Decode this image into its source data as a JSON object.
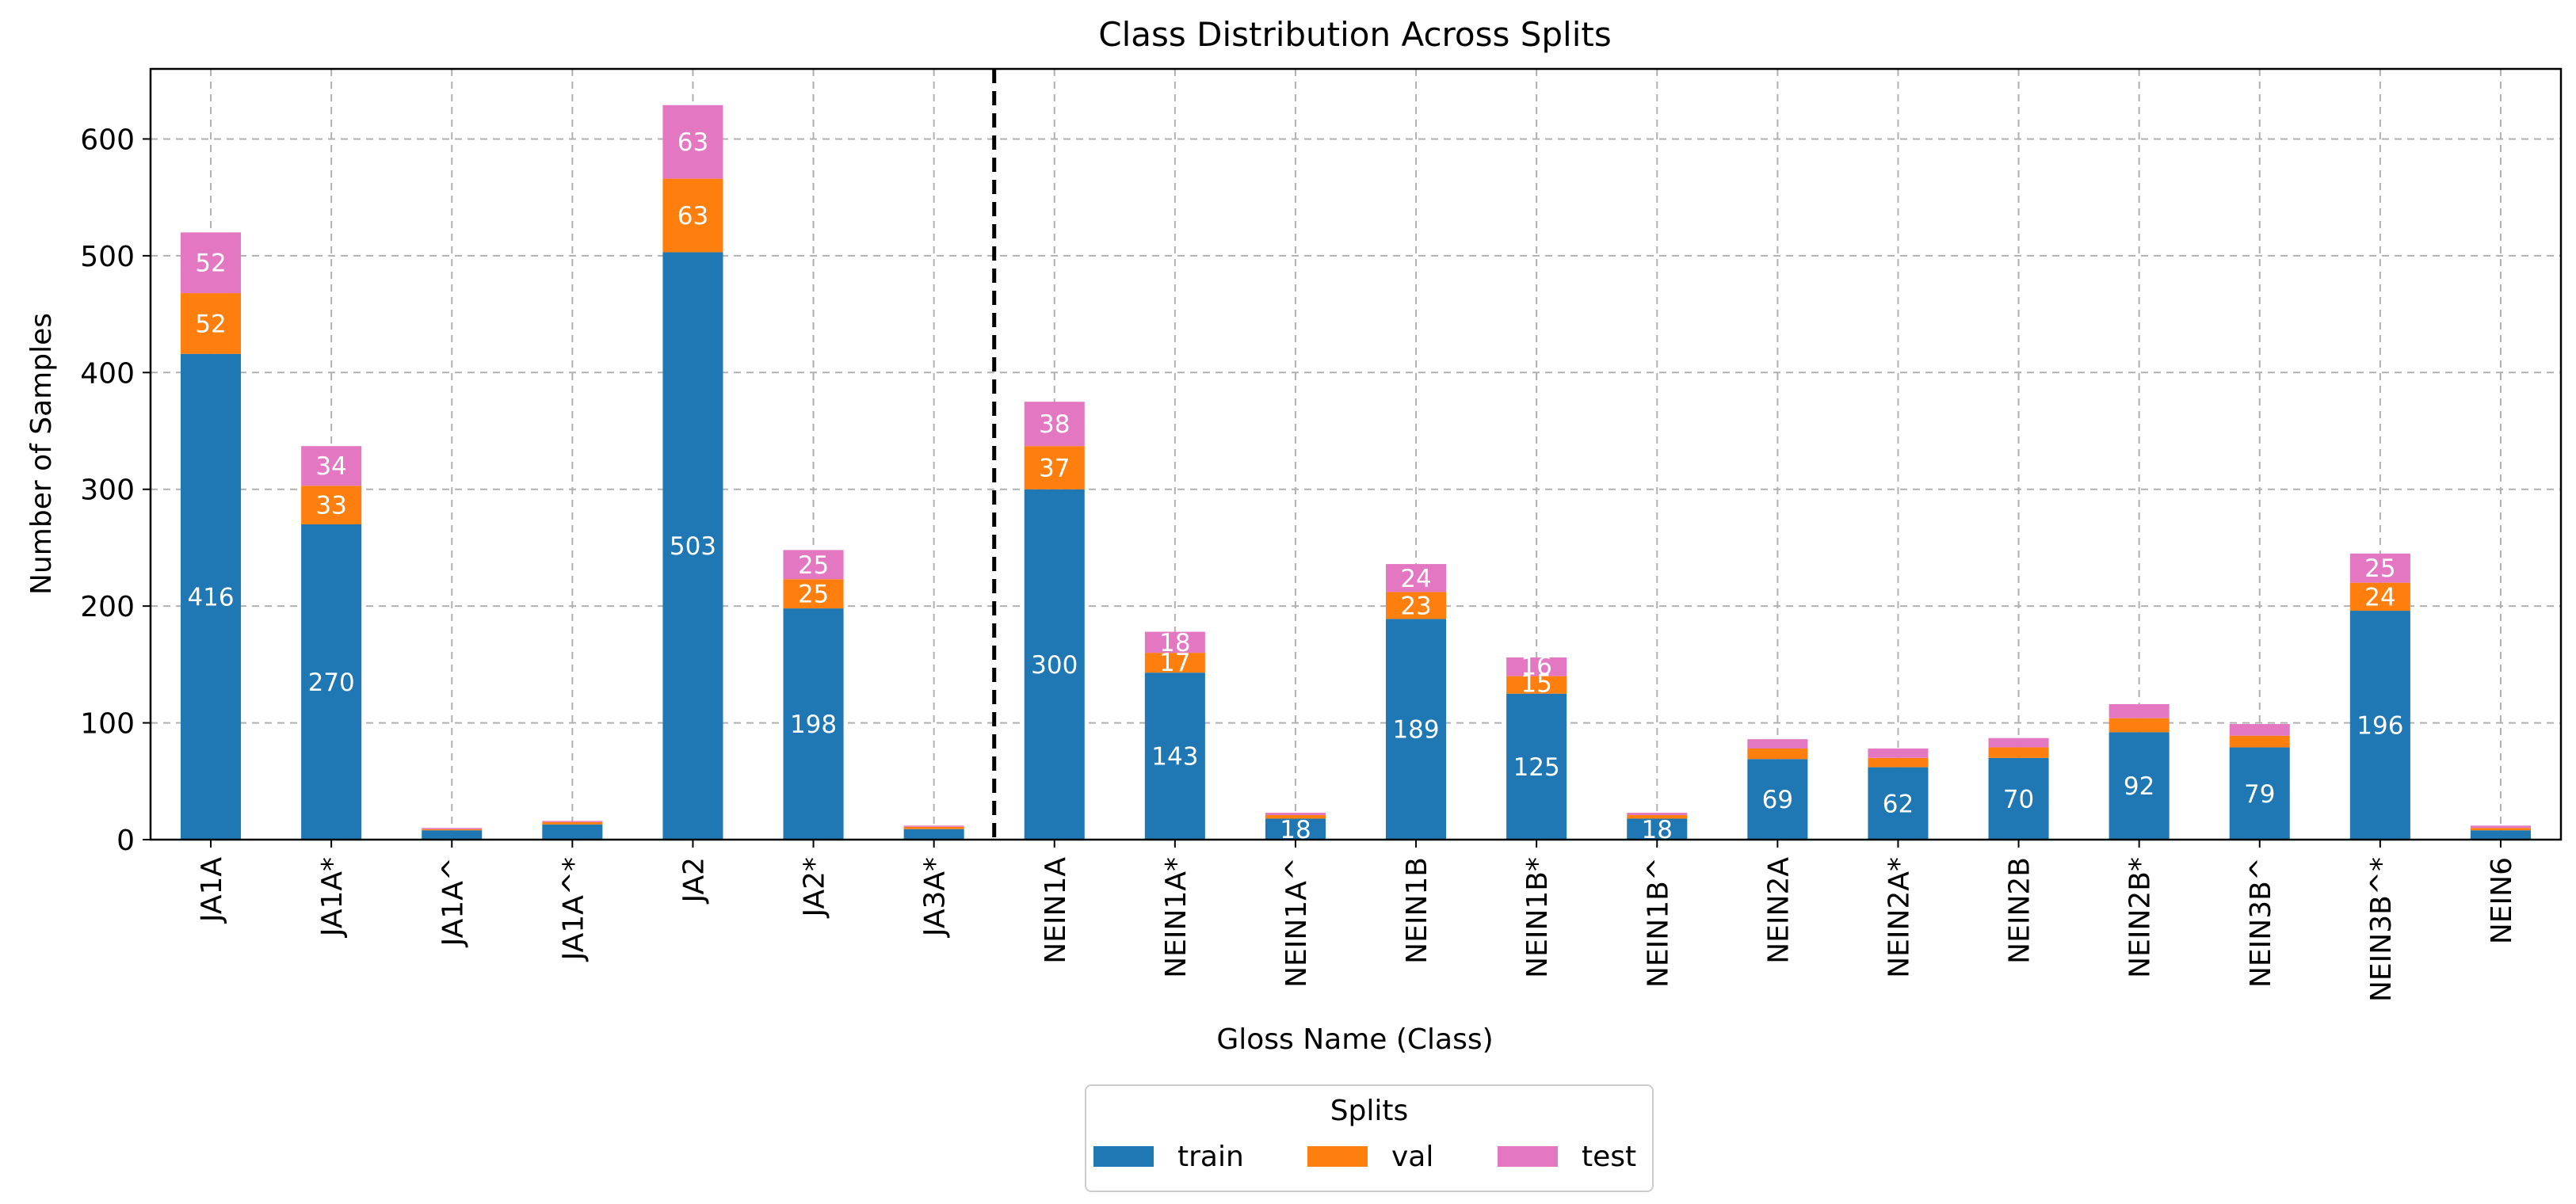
{
  "colors": {
    "train": "#1f77b4",
    "val": "#ff7f0e",
    "test": "#e377c2",
    "grid": "#b0b0b0",
    "text": "#000000",
    "label": "#ffffff"
  },
  "chart_data": {
    "type": "bar",
    "stacked": true,
    "title": "Class Distribution Across Splits",
    "xlabel": "Gloss Name (Class)",
    "ylabel": "Number of Samples",
    "ylim": [
      0,
      660
    ],
    "yticks": [
      0,
      100,
      200,
      300,
      400,
      500,
      600
    ],
    "grid": true,
    "divider_after_category": "JA3A*",
    "categories": [
      "JA1A",
      "JA1A*",
      "JA1A^",
      "JA1A^*",
      "JA2",
      "JA2*",
      "JA3A*",
      "NEIN1A",
      "NEIN1A*",
      "NEIN1A^",
      "NEIN1B",
      "NEIN1B*",
      "NEIN1B^",
      "NEIN2A",
      "NEIN2A*",
      "NEIN2B",
      "NEIN2B*",
      "NEIN3B^",
      "NEIN3B^*",
      "NEIN6"
    ],
    "series": [
      {
        "name": "train",
        "values": [
          416,
          270,
          8,
          13,
          503,
          198,
          9,
          300,
          143,
          18,
          189,
          125,
          18,
          69,
          62,
          70,
          92,
          79,
          196,
          8
        ],
        "labels": [
          "416",
          "270",
          "",
          "",
          "503",
          "198",
          "",
          "300",
          "143",
          "18",
          "189",
          "125",
          "18",
          "69",
          "62",
          "70",
          "92",
          "79",
          "196",
          ""
        ]
      },
      {
        "name": "val",
        "values": [
          52,
          33,
          1,
          2,
          63,
          25,
          2,
          37,
          17,
          3,
          23,
          15,
          3,
          9,
          8,
          9,
          12,
          10,
          24,
          2
        ],
        "labels": [
          "52",
          "33",
          "",
          "",
          "63",
          "25",
          "",
          "37",
          "17",
          "",
          "23",
          "15",
          "",
          "",
          "",
          "",
          "",
          "",
          "24",
          ""
        ]
      },
      {
        "name": "test",
        "values": [
          52,
          34,
          1,
          1,
          63,
          25,
          1,
          38,
          18,
          2,
          24,
          16,
          2,
          8,
          8,
          8,
          12,
          10,
          25,
          2
        ],
        "labels": [
          "52",
          "34",
          "",
          "",
          "63",
          "25",
          "",
          "38",
          "18",
          "",
          "24",
          "16",
          "",
          "",
          "",
          "",
          "",
          "",
          "25",
          ""
        ]
      }
    ],
    "legend": {
      "title": "Splits",
      "position": "bottom-center",
      "entries": [
        "train",
        "val",
        "test"
      ]
    }
  }
}
